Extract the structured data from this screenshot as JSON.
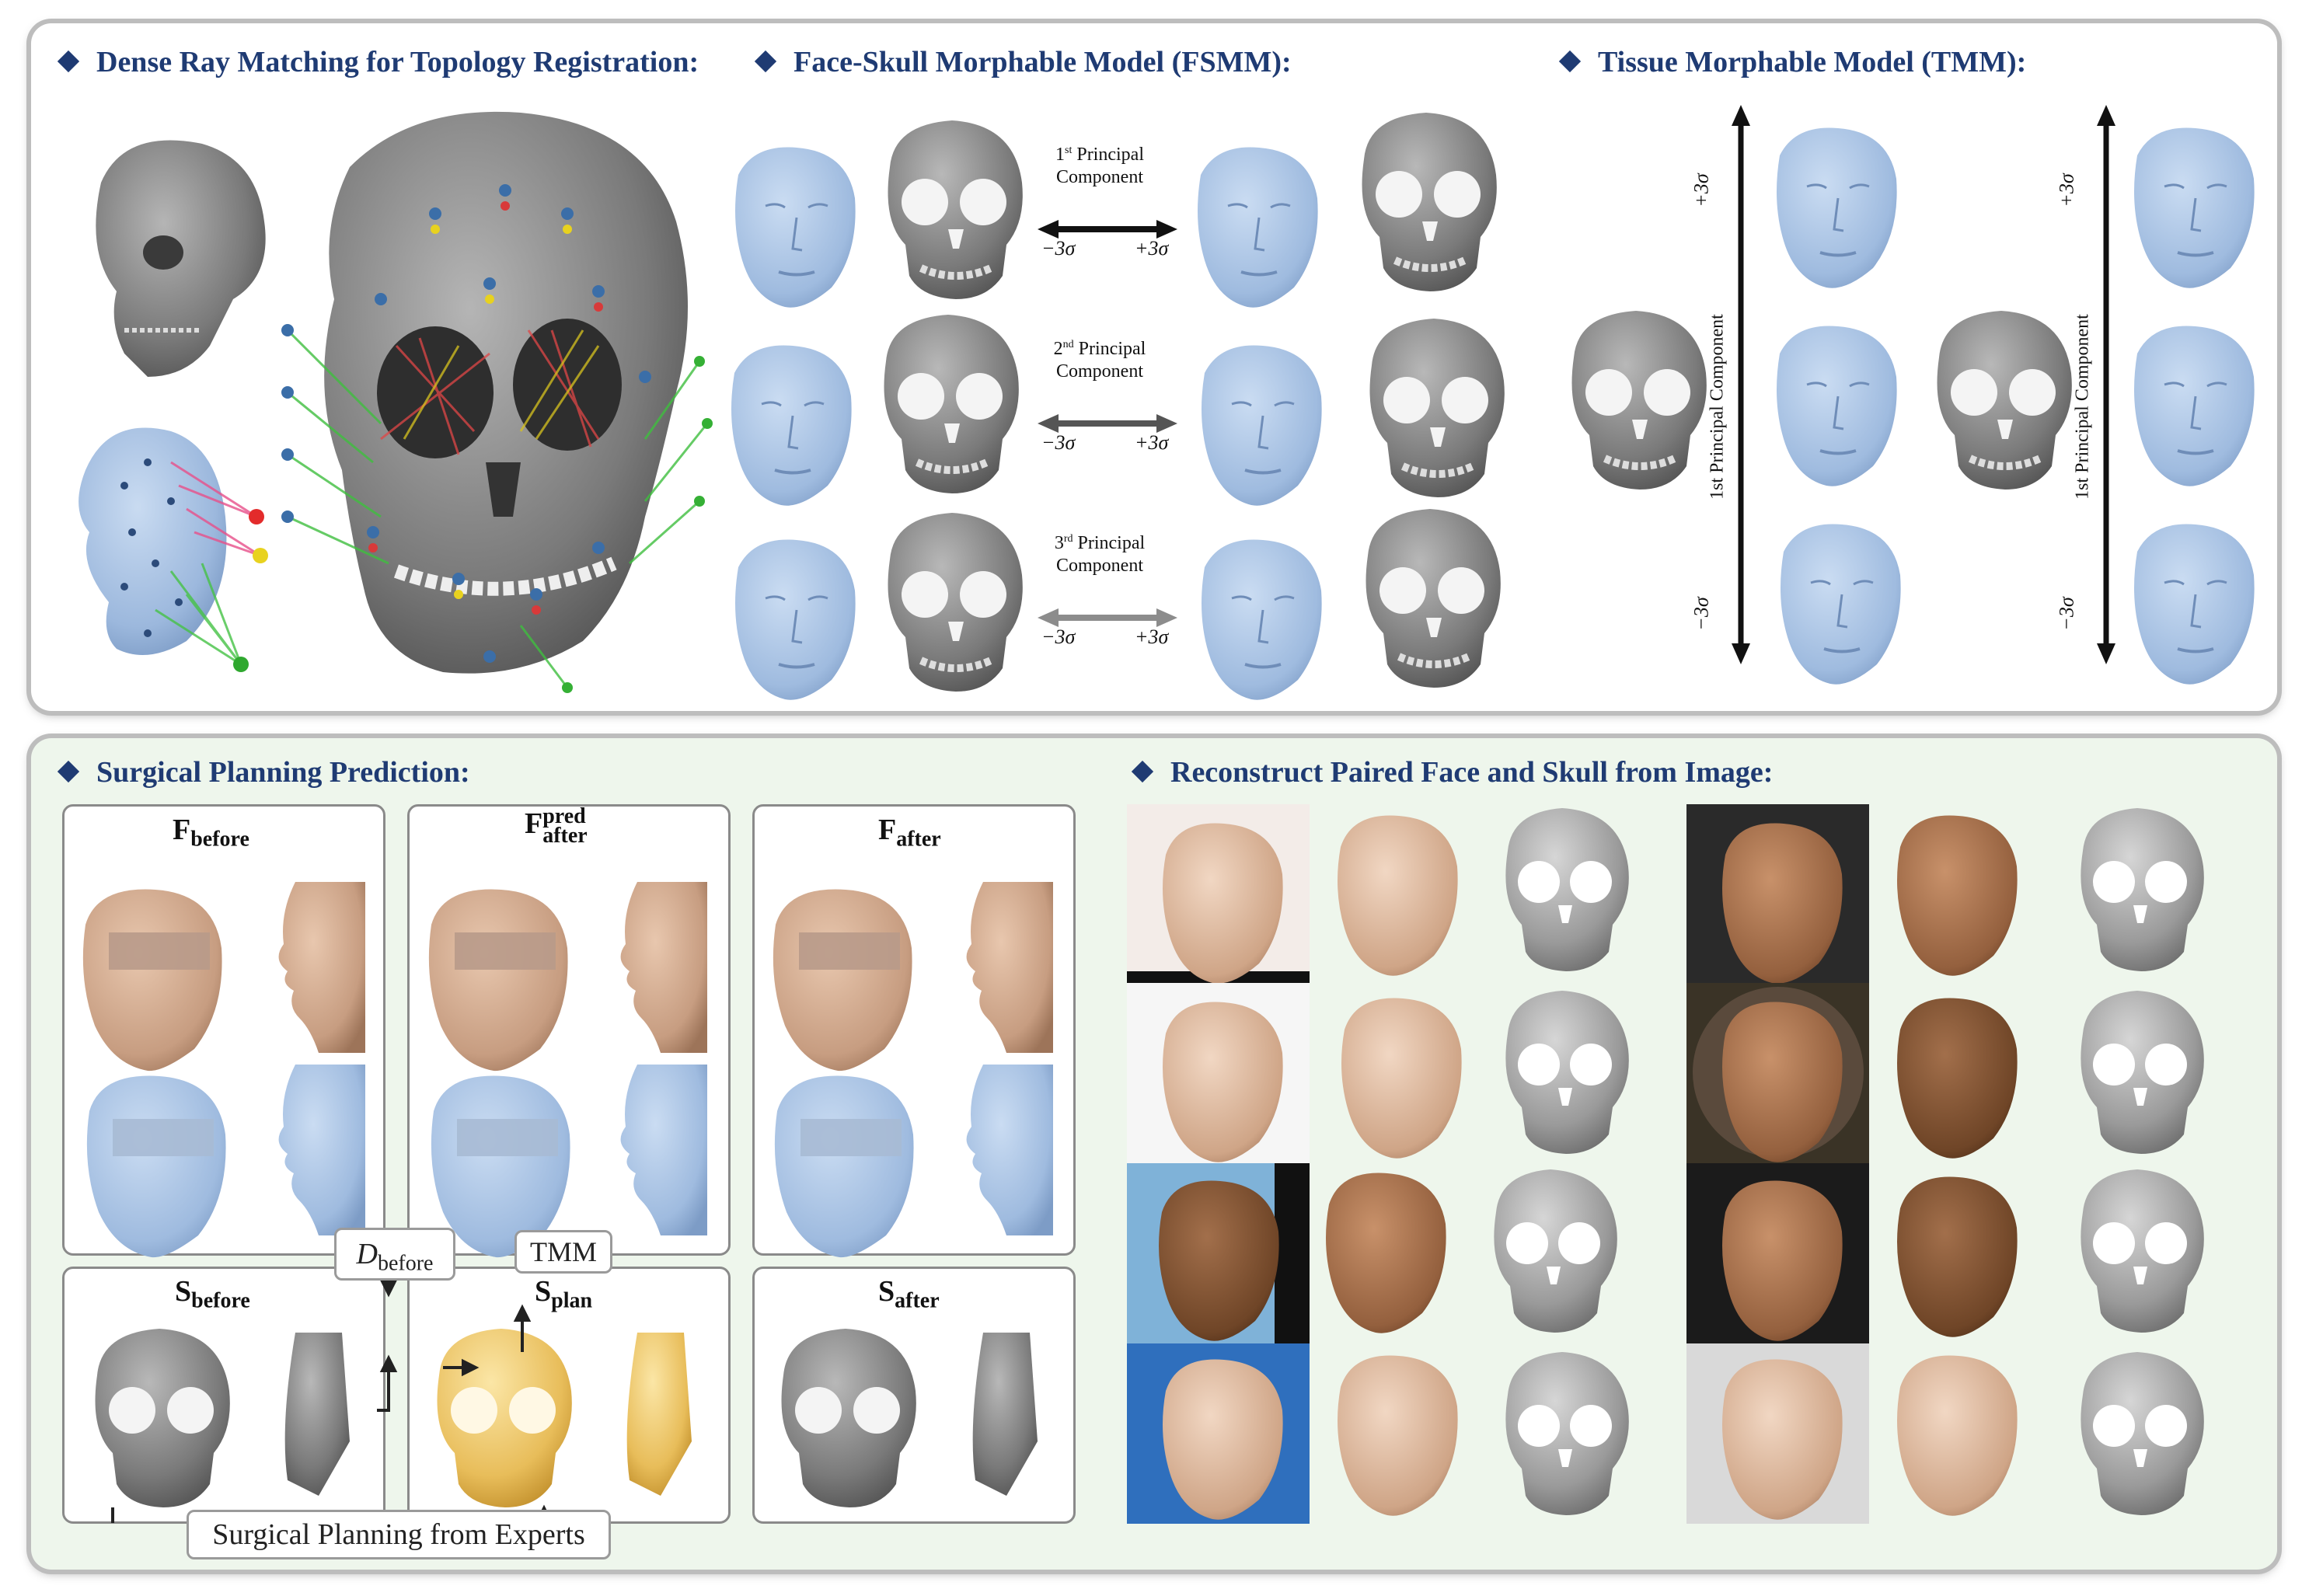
{
  "colors": {
    "title": "#1f3b73",
    "face_blue": "#a9c3e3",
    "skull_gray": "#8c8c8c",
    "plan_gold": "#e9c46a",
    "panel_bg_bottom": "#eef6ec"
  },
  "top_panel": {
    "dense_ray": {
      "title": "Dense Ray Matching for Topology Registration:"
    },
    "fsmm": {
      "title": "Face-Skull Morphable Model (FSMM):",
      "components": [
        {
          "ordinal": "1",
          "sup": "st",
          "label": "Principal",
          "label2": "Component",
          "minus": "−3σ",
          "plus": "+3σ"
        },
        {
          "ordinal": "2",
          "sup": "nd",
          "label": "Principal",
          "label2": "Component",
          "minus": "−3σ",
          "plus": "+3σ"
        },
        {
          "ordinal": "3",
          "sup": "rd",
          "label": "Principal",
          "label2": "Component",
          "minus": "−3σ",
          "plus": "+3σ"
        }
      ]
    },
    "tmm": {
      "title": "Tissue Morphable Model (TMM):",
      "axis1": {
        "top": "+3σ",
        "bottom": "−3σ",
        "label": "1st Principal Component"
      },
      "axis2": {
        "top": "+3σ",
        "bottom": "−3σ",
        "label": "1st Principal Component"
      }
    }
  },
  "bottom_panel": {
    "surgical": {
      "title": "Surgical Planning Prediction:",
      "f_before": {
        "main": "F",
        "sub": "before"
      },
      "f_after_pred": {
        "main": "F",
        "sub": "after",
        "sup": "pred"
      },
      "f_after": {
        "main": "F",
        "sub": "after"
      },
      "s_before": {
        "main": "S",
        "sub": "before"
      },
      "s_plan": {
        "main": "S",
        "sub": "plan"
      },
      "s_after": {
        "main": "S",
        "sub": "after"
      },
      "d_before": {
        "main": "D",
        "sub": "before"
      },
      "tmm_tag": "TMM",
      "experts_tag": "Surgical Planning from Experts"
    },
    "reconstruct": {
      "title": "Reconstruct Paired Face and Skull from Image:"
    }
  }
}
